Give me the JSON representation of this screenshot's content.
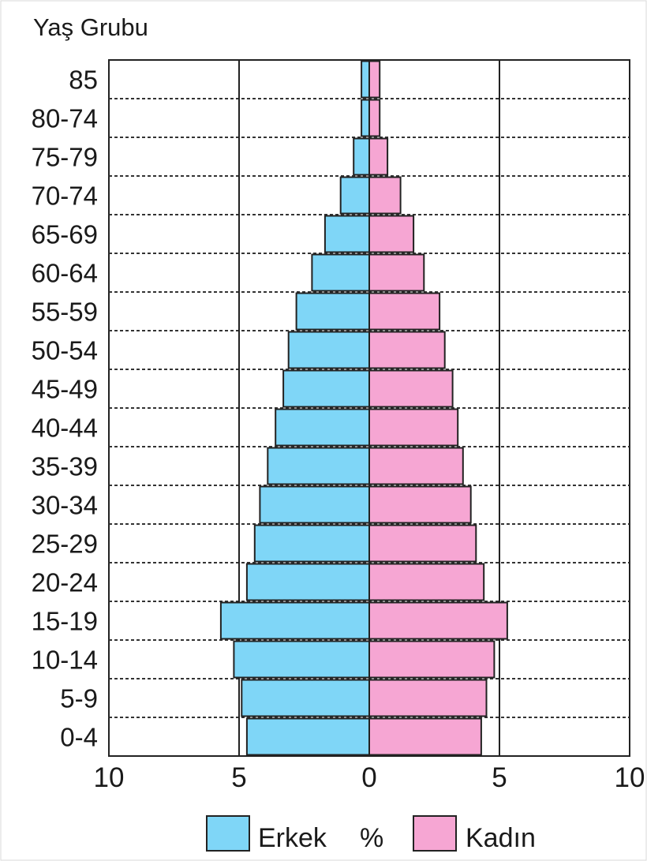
{
  "chart_data": {
    "type": "bar",
    "orientation": "horizontal-pyramid",
    "y_axis_title": "Yaş Grubu",
    "x_unit": "%",
    "categories": [
      "0-4",
      "5-9",
      "10-14",
      "15-19",
      "20-24",
      "25-29",
      "30-34",
      "35-39",
      "40-44",
      "45-49",
      "50-54",
      "55-59",
      "60-64",
      "65-69",
      "70-74",
      "75-79",
      "80-74",
      "85"
    ],
    "series": [
      {
        "name": "Erkek",
        "color": "#7fd6f7",
        "side": "left",
        "values": [
          4.7,
          4.9,
          5.2,
          5.7,
          4.7,
          4.4,
          4.2,
          3.9,
          3.6,
          3.3,
          3.1,
          2.8,
          2.2,
          1.7,
          1.1,
          0.6,
          0.3,
          0.3
        ]
      },
      {
        "name": "Kadın",
        "color": "#f6a6d3",
        "side": "right",
        "values": [
          4.3,
          4.5,
          4.8,
          5.3,
          4.4,
          4.1,
          3.9,
          3.6,
          3.4,
          3.2,
          2.9,
          2.7,
          2.1,
          1.7,
          1.2,
          0.7,
          0.4,
          0.4
        ]
      }
    ],
    "x_ticks": [
      "10",
      "5",
      "0",
      "5",
      "10"
    ],
    "xlim": [
      -10,
      10
    ],
    "gridlines": "vertical solid at ±5, horizontal dotted between age groups",
    "legend_placement": "bottom-center"
  }
}
